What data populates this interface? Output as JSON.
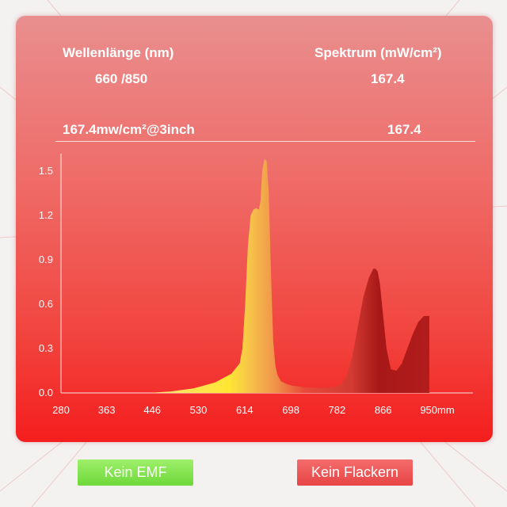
{
  "header": {
    "wavelength_label": "Wellenlänge (nm)",
    "wavelength_value": "660 /850",
    "spectrum_label": "Spektrum (mW/cm²)",
    "spectrum_value": "167.4",
    "irradiance_label": "167.4mw/cm²@3inch",
    "irradiance_value": "167.4"
  },
  "buttons": {
    "no_emf": "Kein EMF",
    "no_flicker": "Kein Flackern"
  },
  "colors": {
    "green_button": "#7ddf48",
    "red_button": "#ec5252",
    "panel_top": "#e98f8f",
    "panel_bottom": "#f41e1e"
  },
  "chart_data": {
    "type": "area",
    "x_ticks": [
      "280",
      "363",
      "446",
      "530",
      "614",
      "698",
      "782",
      "866",
      "950mm"
    ],
    "x_tick_values": [
      280,
      363,
      446,
      530,
      614,
      698,
      782,
      866,
      950
    ],
    "y_ticks": [
      "0.0",
      "0.3",
      "0.6",
      "0.9",
      "1.2",
      "1.5"
    ],
    "y_tick_values": [
      0,
      0.3,
      0.6,
      0.9,
      1.2,
      1.5
    ],
    "xlim": [
      280,
      950
    ],
    "ylim": [
      0,
      1.5
    ],
    "x": [
      440,
      480,
      520,
      560,
      590,
      605,
      610,
      615,
      620,
      625,
      630,
      635,
      640,
      643,
      646,
      650,
      654,
      658,
      662,
      666,
      670,
      674,
      680,
      690,
      700,
      720,
      740,
      760,
      780,
      790,
      800,
      810,
      820,
      830,
      840,
      848,
      852,
      856,
      860,
      866,
      872,
      880,
      890,
      900,
      910,
      920,
      930,
      940,
      950
    ],
    "values": [
      0.0,
      0.01,
      0.03,
      0.07,
      0.13,
      0.2,
      0.3,
      0.6,
      1.0,
      1.2,
      1.24,
      1.25,
      1.24,
      1.3,
      1.5,
      1.58,
      1.57,
      1.35,
      0.8,
      0.35,
      0.18,
      0.12,
      0.08,
      0.06,
      0.05,
      0.04,
      0.035,
      0.035,
      0.04,
      0.06,
      0.12,
      0.25,
      0.45,
      0.65,
      0.78,
      0.84,
      0.84,
      0.82,
      0.74,
      0.52,
      0.3,
      0.16,
      0.15,
      0.2,
      0.3,
      0.4,
      0.48,
      0.52,
      0.52
    ]
  }
}
